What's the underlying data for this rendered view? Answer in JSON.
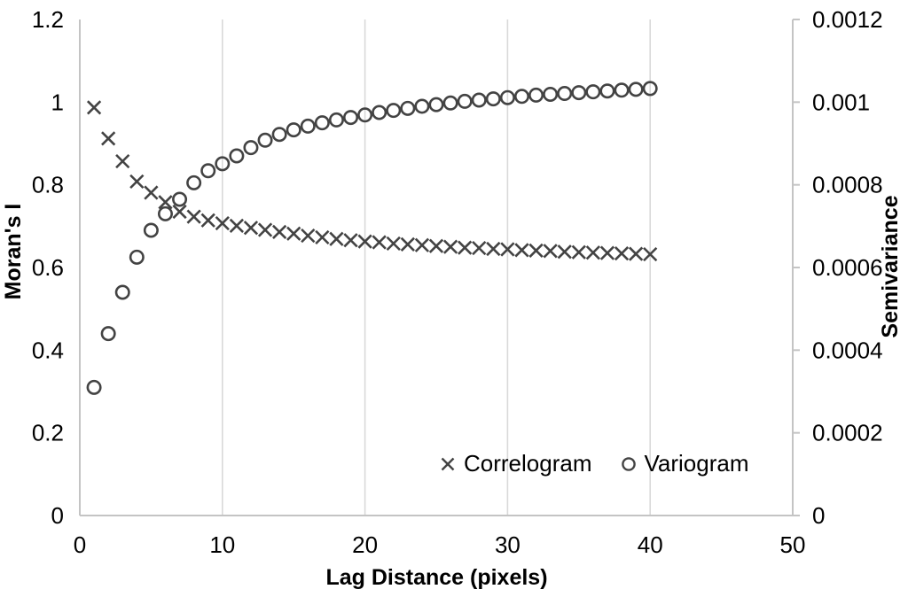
{
  "chart_data": {
    "type": "scatter",
    "title": "",
    "xlabel": "Lag Distance (pixels)",
    "ylabel_left": "Moran's I",
    "ylabel_right": "Semivariance",
    "grid": "vertical-gridlines-only",
    "legend_position": "inside-bottom-center",
    "x_axis": {
      "min": 0,
      "max": 50,
      "ticks": [
        0,
        10,
        20,
        30,
        40,
        50
      ],
      "tick_labels": [
        "0",
        "10",
        "20",
        "30",
        "40",
        "50"
      ]
    },
    "y_axis_left": {
      "min": 0,
      "max": 1.2,
      "ticks": [
        0,
        0.2,
        0.4,
        0.6,
        0.8,
        1,
        1.2
      ],
      "tick_labels": [
        "0",
        "0.2",
        "0.4",
        "0.6",
        "0.8",
        "1",
        "1.2"
      ]
    },
    "y_axis_right": {
      "min": 0,
      "max": 0.0012,
      "ticks": [
        0,
        0.0002,
        0.0004,
        0.0006,
        0.0008,
        0.001,
        0.0012
      ],
      "tick_labels": [
        "0",
        "0.0002",
        "0.0004",
        "0.0006",
        "0.0008",
        "0.001",
        "0.0012"
      ]
    },
    "x": [
      1,
      2,
      3,
      4,
      5,
      6,
      7,
      8,
      9,
      10,
      11,
      12,
      13,
      14,
      15,
      16,
      17,
      18,
      19,
      20,
      21,
      22,
      23,
      24,
      25,
      26,
      27,
      28,
      29,
      30,
      31,
      32,
      33,
      34,
      35,
      36,
      37,
      38,
      39,
      40
    ],
    "series": [
      {
        "name": "Correlogram",
        "marker": "x",
        "axis": "left",
        "values": [
          0.987,
          0.912,
          0.857,
          0.808,
          0.781,
          0.758,
          0.735,
          0.723,
          0.714,
          0.707,
          0.701,
          0.696,
          0.691,
          0.686,
          0.682,
          0.677,
          0.673,
          0.669,
          0.666,
          0.663,
          0.661,
          0.658,
          0.656,
          0.654,
          0.652,
          0.65,
          0.648,
          0.647,
          0.645,
          0.644,
          0.642,
          0.641,
          0.64,
          0.638,
          0.637,
          0.636,
          0.635,
          0.634,
          0.633,
          0.632
        ]
      },
      {
        "name": "Variogram",
        "marker": "circle",
        "axis": "right",
        "values": [
          0.00031,
          0.00044,
          0.00054,
          0.000625,
          0.00069,
          0.00073,
          0.000765,
          0.000805,
          0.000834,
          0.000851,
          0.00087,
          0.00089,
          0.000908,
          0.000922,
          0.000933,
          0.000942,
          0.00095,
          0.000957,
          0.000963,
          0.000969,
          0.000975,
          0.00098,
          0.000985,
          0.00099,
          0.000994,
          0.000998,
          0.001002,
          0.001005,
          0.001008,
          0.001011,
          0.001014,
          0.001017,
          0.001019,
          0.001021,
          0.001023,
          0.001025,
          0.001027,
          0.001029,
          0.001031,
          0.001033
        ]
      }
    ],
    "colors": {
      "marker": "#434343",
      "gridline": "#d9d9d9",
      "axis_line": "#c4c4c4",
      "text": "#000000",
      "background": "#ffffff"
    }
  }
}
